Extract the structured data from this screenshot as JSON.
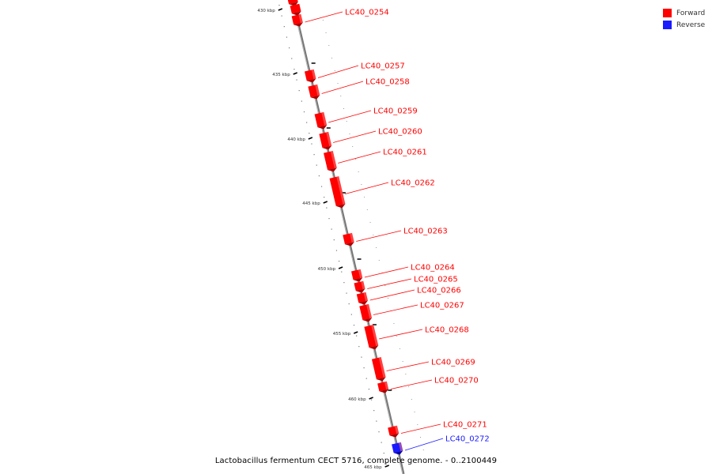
{
  "legend": {
    "forward_label": "Forward",
    "reverse_label": "Reverse",
    "forward_color": "#ff0000",
    "reverse_color": "#1a1aff"
  },
  "caption": "Lactobacillus fermentum CECT 5716, complete genome. - 0..2100449",
  "ticks": [
    "430 kbp",
    "435 kbp",
    "440 kbp",
    "445 kbp",
    "450 kbp",
    "455 kbp",
    "460 kbp",
    "465 kbp"
  ],
  "genes": [
    {
      "label": "LC40_0254",
      "strand": "forward"
    },
    {
      "label": "LC40_0257",
      "strand": "forward"
    },
    {
      "label": "LC40_0258",
      "strand": "forward"
    },
    {
      "label": "LC40_0259",
      "strand": "forward"
    },
    {
      "label": "LC40_0260",
      "strand": "forward"
    },
    {
      "label": "LC40_0261",
      "strand": "forward"
    },
    {
      "label": "LC40_0262",
      "strand": "forward"
    },
    {
      "label": "LC40_0263",
      "strand": "forward"
    },
    {
      "label": "LC40_0264",
      "strand": "forward"
    },
    {
      "label": "LC40_0265",
      "strand": "forward"
    },
    {
      "label": "LC40_0266",
      "strand": "forward"
    },
    {
      "label": "LC40_0267",
      "strand": "forward"
    },
    {
      "label": "LC40_0268",
      "strand": "forward"
    },
    {
      "label": "LC40_0269",
      "strand": "forward"
    },
    {
      "label": "LC40_0270",
      "strand": "forward"
    },
    {
      "label": "LC40_0271",
      "strand": "forward"
    },
    {
      "label": "LC40_0272",
      "strand": "reverse"
    }
  ]
}
